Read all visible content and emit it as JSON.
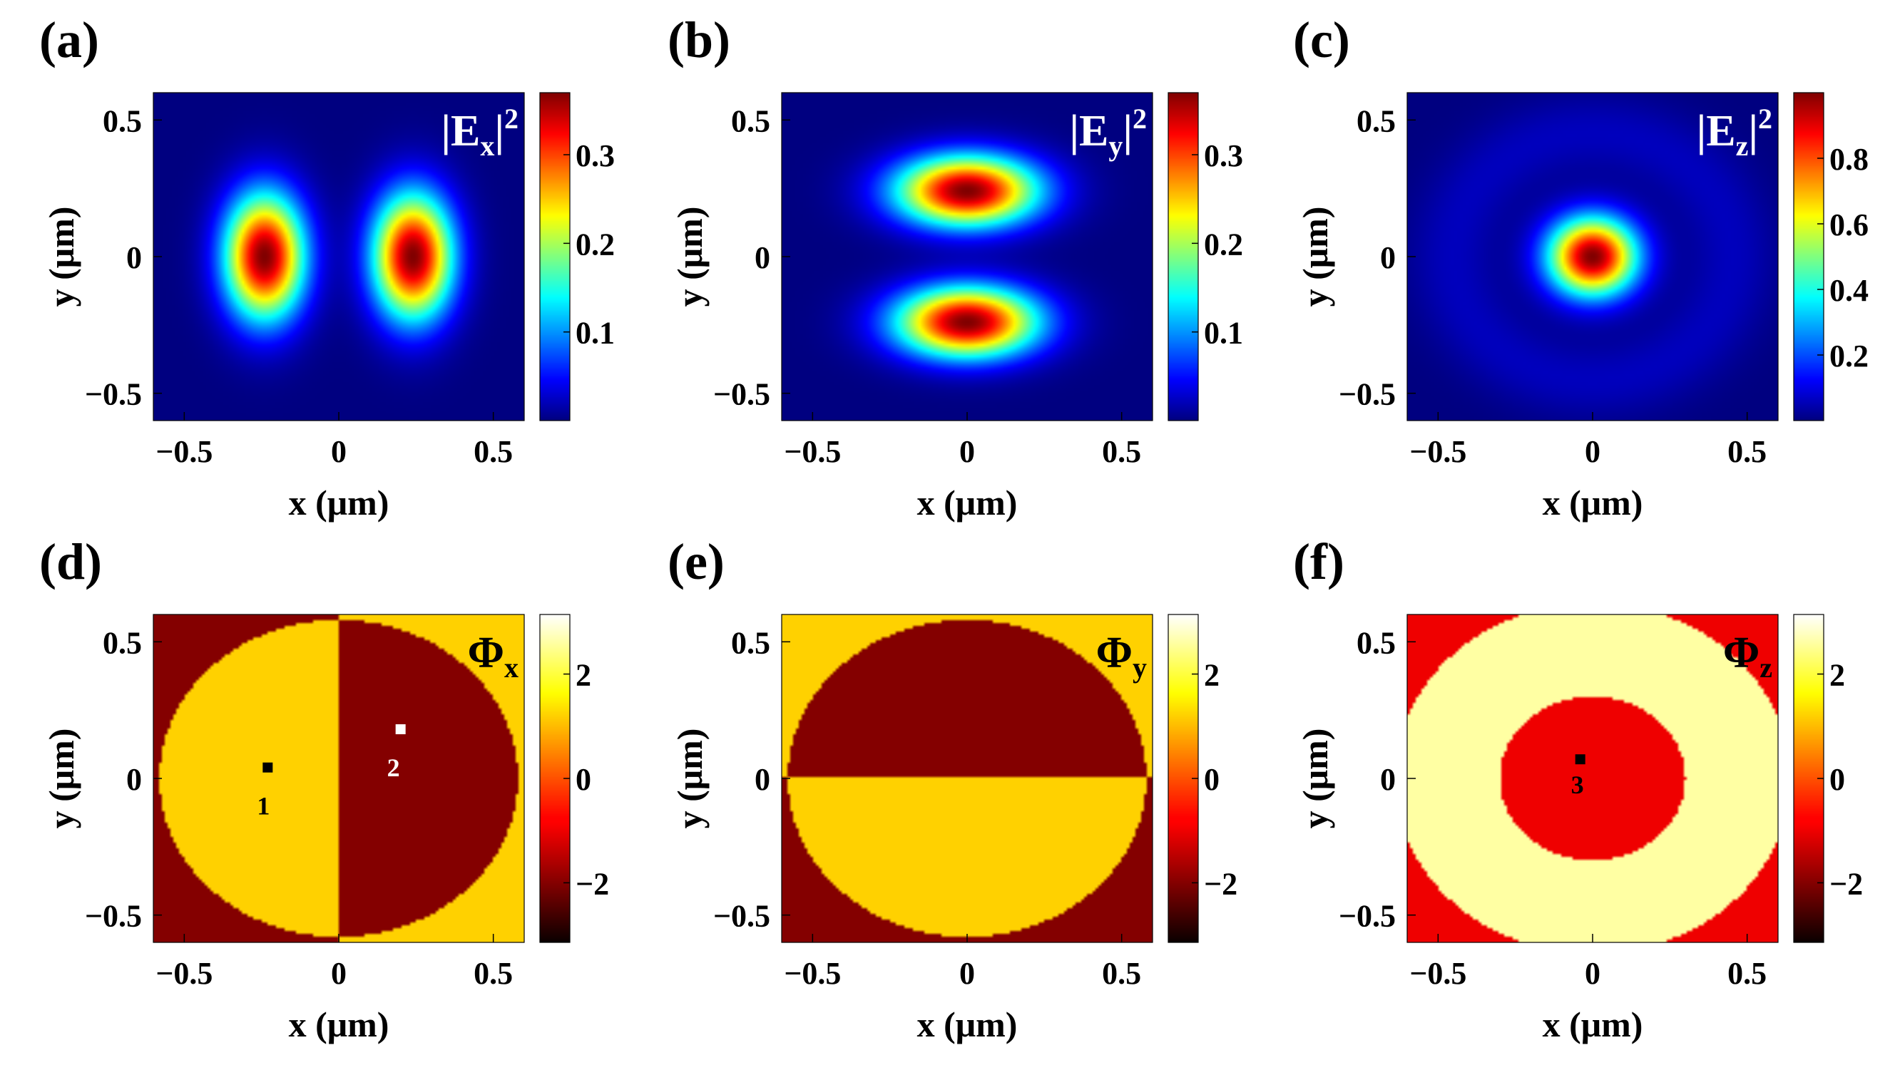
{
  "figure": {
    "panels": [
      {
        "id": "a",
        "label": "(a)",
        "kind": "intensity",
        "symbol": "|E",
        "subscript": "x",
        "suffix": "|",
        "superscript": "2",
        "cbar_ticks": [
          "0.1",
          "0.2",
          "0.3"
        ]
      },
      {
        "id": "b",
        "label": "(b)",
        "kind": "intensity",
        "symbol": "|E",
        "subscript": "y",
        "suffix": "|",
        "superscript": "2",
        "cbar_ticks": [
          "0.1",
          "0.2",
          "0.3"
        ]
      },
      {
        "id": "c",
        "label": "(c)",
        "kind": "intensity",
        "symbol": "|E",
        "subscript": "z",
        "suffix": "|",
        "superscript": "2",
        "cbar_ticks": [
          "0.2",
          "0.4",
          "0.6",
          "0.8"
        ]
      },
      {
        "id": "d",
        "label": "(d)",
        "kind": "phase",
        "symbol": "Φ",
        "subscript": "x",
        "suffix": "",
        "superscript": "",
        "cbar_ticks": [
          "−2",
          "0",
          "2"
        ],
        "points": [
          {
            "text": "1"
          },
          {
            "text": "2"
          }
        ]
      },
      {
        "id": "e",
        "label": "(e)",
        "kind": "phase",
        "symbol": "Φ",
        "subscript": "y",
        "suffix": "",
        "superscript": "",
        "cbar_ticks": [
          "−2",
          "0",
          "2"
        ],
        "points": []
      },
      {
        "id": "f",
        "label": "(f)",
        "kind": "phase",
        "symbol": "Φ",
        "subscript": "z",
        "suffix": "",
        "superscript": "",
        "cbar_ticks": [
          "−2",
          "0",
          "2"
        ],
        "points": [
          {
            "text": "3"
          }
        ]
      }
    ],
    "axis": {
      "xlabel": "x (μm)",
      "ylabel": "y (μm)",
      "ticks": [
        "−0.5",
        "0",
        "0.5"
      ]
    }
  },
  "chart_data": [
    {
      "type": "heatmap",
      "title": "|Ex|^2",
      "xlabel": "x (μm)",
      "ylabel": "y (μm)",
      "xlim": [
        -0.6,
        0.6
      ],
      "ylim": [
        -0.6,
        0.6
      ],
      "xticks": [
        -0.5,
        0,
        0.5
      ],
      "yticks": [
        -0.5,
        0,
        0.5
      ],
      "colormap": "jet",
      "clim": [
        0,
        0.37
      ],
      "colorbar_ticks": [
        0.1,
        0.2,
        0.3
      ],
      "features": [
        {
          "shape": "lobe",
          "center": [
            -0.24,
            0
          ],
          "peak": 0.37
        },
        {
          "shape": "lobe",
          "center": [
            0.24,
            0
          ],
          "peak": 0.37
        }
      ]
    },
    {
      "type": "heatmap",
      "title": "|Ey|^2",
      "xlabel": "x (μm)",
      "ylabel": "y (μm)",
      "xlim": [
        -0.6,
        0.6
      ],
      "ylim": [
        -0.6,
        0.6
      ],
      "xticks": [
        -0.5,
        0,
        0.5
      ],
      "yticks": [
        -0.5,
        0,
        0.5
      ],
      "colormap": "jet",
      "clim": [
        0,
        0.37
      ],
      "colorbar_ticks": [
        0.1,
        0.2,
        0.3
      ],
      "features": [
        {
          "shape": "lobe",
          "center": [
            0,
            0.24
          ],
          "peak": 0.37
        },
        {
          "shape": "lobe",
          "center": [
            0,
            -0.24
          ],
          "peak": 0.37
        }
      ]
    },
    {
      "type": "heatmap",
      "title": "|Ez|^2",
      "xlabel": "x (μm)",
      "ylabel": "y (μm)",
      "xlim": [
        -0.6,
        0.6
      ],
      "ylim": [
        -0.6,
        0.6
      ],
      "xticks": [
        -0.5,
        0,
        0.5
      ],
      "yticks": [
        -0.5,
        0,
        0.5
      ],
      "colormap": "jet",
      "clim": [
        0,
        1.0
      ],
      "colorbar_ticks": [
        0.2,
        0.4,
        0.6,
        0.8
      ],
      "features": [
        {
          "shape": "spot",
          "center": [
            0,
            0
          ],
          "peak": 1.0
        },
        {
          "shape": "ring",
          "radius": 0.45,
          "peak": 0.06
        }
      ]
    },
    {
      "type": "heatmap",
      "title": "Φx",
      "xlabel": "x (μm)",
      "ylabel": "y (μm)",
      "xlim": [
        -0.6,
        0.6
      ],
      "ylim": [
        -0.6,
        0.6
      ],
      "xticks": [
        -0.5,
        0,
        0.5
      ],
      "yticks": [
        -0.5,
        0,
        0.5
      ],
      "colormap": "hot",
      "clim": [
        -3.14159,
        3.14159
      ],
      "colorbar_ticks": [
        -2,
        0,
        2
      ],
      "regions": [
        {
          "inside_circle_radius": 0.58,
          "left_half": 1.2,
          "right_half": -2.0
        },
        {
          "outside_circle_left_half": -2.0,
          "outside_circle_right_half": 1.2
        }
      ],
      "markers": [
        {
          "label": "1",
          "x": -0.23,
          "y": 0.04,
          "value": 1.2
        },
        {
          "label": "2",
          "x": 0.2,
          "y": 0.18,
          "value": -2.0
        }
      ]
    },
    {
      "type": "heatmap",
      "title": "Φy",
      "xlabel": "x (μm)",
      "ylabel": "y (μm)",
      "xlim": [
        -0.6,
        0.6
      ],
      "ylim": [
        -0.6,
        0.6
      ],
      "xticks": [
        -0.5,
        0,
        0.5
      ],
      "yticks": [
        -0.5,
        0,
        0.5
      ],
      "colormap": "hot",
      "clim": [
        -3.14159,
        3.14159
      ],
      "colorbar_ticks": [
        -2,
        0,
        2
      ],
      "regions": [
        {
          "inside_circle_radius": 0.58,
          "top_half": -2.0,
          "bottom_half": 1.2
        },
        {
          "outside_circle_top_half": 1.2,
          "outside_circle_bottom_half": -2.0
        }
      ]
    },
    {
      "type": "heatmap",
      "title": "Φz",
      "xlabel": "x (μm)",
      "ylabel": "y (μm)",
      "xlim": [
        -0.6,
        0.6
      ],
      "ylim": [
        -0.6,
        0.6
      ],
      "xticks": [
        -0.5,
        0,
        0.5
      ],
      "yticks": [
        -0.5,
        0,
        0.5
      ],
      "colormap": "hot",
      "clim": [
        -3.14159,
        3.14159
      ],
      "colorbar_ticks": [
        -2,
        0,
        2
      ],
      "regions": [
        {
          "disk_radius": 0.3,
          "value": -1.0
        },
        {
          "annulus": [
            0.3,
            0.64
          ],
          "value": 2.6
        },
        {
          "outside_radius": 0.64,
          "value": -1.0
        }
      ],
      "markers": [
        {
          "label": "3",
          "x": -0.04,
          "y": 0.07,
          "value": -1.0
        }
      ]
    }
  ]
}
